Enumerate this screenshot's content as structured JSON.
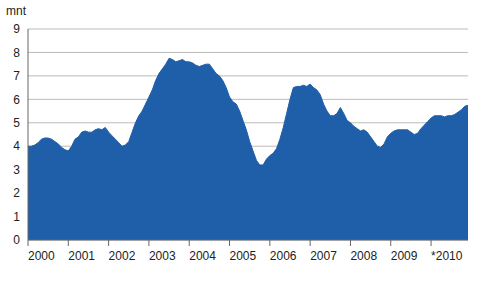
{
  "chart_data": {
    "type": "area",
    "ylabel": "mnt",
    "color": "#1f5ea8",
    "grid": true,
    "ylim": [
      0,
      9
    ],
    "yticks": [
      0,
      1,
      2,
      3,
      4,
      5,
      6,
      7,
      8,
      9
    ],
    "categories": [
      "2000",
      null,
      null,
      null,
      null,
      null,
      null,
      null,
      null,
      null,
      null,
      null,
      "2001",
      null,
      null,
      null,
      null,
      null,
      null,
      null,
      null,
      null,
      null,
      null,
      "2002",
      null,
      null,
      null,
      null,
      null,
      null,
      null,
      null,
      null,
      null,
      null,
      "2003",
      null,
      null,
      null,
      null,
      null,
      null,
      null,
      null,
      null,
      null,
      null,
      "2004",
      null,
      null,
      null,
      null,
      null,
      null,
      null,
      null,
      null,
      null,
      null,
      "2005",
      null,
      null,
      null,
      null,
      null,
      null,
      null,
      null,
      null,
      null,
      null,
      "2006",
      null,
      null,
      null,
      null,
      null,
      null,
      null,
      null,
      null,
      null,
      null,
      "2007",
      null,
      null,
      null,
      null,
      null,
      null,
      null,
      null,
      null,
      null,
      null,
      "2008",
      null,
      null,
      null,
      null,
      null,
      null,
      null,
      null,
      null,
      null,
      null,
      "2009",
      null,
      null,
      null,
      null,
      null,
      null,
      null,
      null,
      null,
      null,
      null,
      "*2010",
      null,
      null,
      null,
      null,
      null,
      null,
      null,
      null,
      null,
      null,
      null
    ],
    "values": [
      4.0,
      4.0,
      4.05,
      4.15,
      4.3,
      4.35,
      4.35,
      4.3,
      4.2,
      4.1,
      3.95,
      3.85,
      3.8,
      4.0,
      4.3,
      4.4,
      4.6,
      4.65,
      4.6,
      4.6,
      4.7,
      4.75,
      4.7,
      4.8,
      4.6,
      4.45,
      4.3,
      4.15,
      4.0,
      4.05,
      4.2,
      4.6,
      5.0,
      5.3,
      5.5,
      5.8,
      6.1,
      6.4,
      6.8,
      7.1,
      7.3,
      7.5,
      7.75,
      7.7,
      7.6,
      7.65,
      7.7,
      7.6,
      7.6,
      7.55,
      7.45,
      7.4,
      7.45,
      7.5,
      7.5,
      7.3,
      7.1,
      7.0,
      6.8,
      6.5,
      6.1,
      5.9,
      5.8,
      5.5,
      5.1,
      4.7,
      4.2,
      3.8,
      3.4,
      3.2,
      3.2,
      3.45,
      3.6,
      3.7,
      3.9,
      4.3,
      4.8,
      5.4,
      6.0,
      6.5,
      6.55,
      6.55,
      6.6,
      6.55,
      6.65,
      6.5,
      6.4,
      6.2,
      5.8,
      5.5,
      5.3,
      5.3,
      5.4,
      5.65,
      5.4,
      5.1,
      5.0,
      4.85,
      4.75,
      4.65,
      4.7,
      4.6,
      4.4,
      4.2,
      4.0,
      3.95,
      4.1,
      4.4,
      4.55,
      4.65,
      4.7,
      4.7,
      4.7,
      4.7,
      4.6,
      4.5,
      4.55,
      4.75,
      4.9,
      5.05,
      5.2,
      5.3,
      5.3,
      5.3,
      5.25,
      5.3,
      5.3,
      5.35,
      5.45,
      5.55,
      5.7,
      5.75
    ]
  }
}
